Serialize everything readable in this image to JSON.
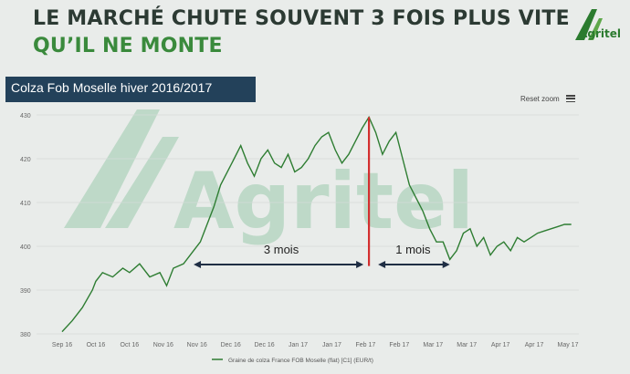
{
  "header": {
    "title_line1": "LE MARCHÉ CHUTE SOUVENT 3 FOIS PLUS VITE",
    "title_line2": "QU’IL NE MONTE"
  },
  "logo": {
    "text": "Agritel"
  },
  "watermark": {
    "text": "Agritel"
  },
  "toolbar": {
    "reset_zoom": "Reset zoom",
    "menu_icon": "hamburger-menu-icon"
  },
  "colors": {
    "accent_green": "#3a8a3c",
    "line": "#2e7d32",
    "marker": "#d32f2f",
    "band": "#23415a"
  },
  "annotations": {
    "rise": "3 mois",
    "fall": "1 mois"
  },
  "chart_data": {
    "type": "line",
    "title": "Colza Fob Moselle hiver 2016/2017",
    "xlabel": "",
    "ylabel": "",
    "ylim": [
      380,
      430
    ],
    "yticks": [
      380,
      390,
      400,
      410,
      420,
      430
    ],
    "x_labels": [
      "Sep 16",
      "Oct 16",
      "Oct 16",
      "Nov 16",
      "Nov 16",
      "Dec 16",
      "Dec 16",
      "Jan 17",
      "Jan 17",
      "Feb 17",
      "Feb 17",
      "Mar 17",
      "Mar 17",
      "Apr 17",
      "Apr 17",
      "May 17"
    ],
    "series": [
      {
        "name": "Graine de colza France FOB Moselle (flat) [C1] (EUR/t)",
        "x": [
          0,
          0.3,
          0.6,
          0.9,
          1.0,
          1.2,
          1.5,
          1.8,
          2.0,
          2.3,
          2.6,
          2.9,
          3.1,
          3.3,
          3.6,
          3.9,
          4.1,
          4.3,
          4.5,
          4.7,
          4.9,
          5.1,
          5.3,
          5.5,
          5.7,
          5.9,
          6.1,
          6.3,
          6.5,
          6.7,
          6.9,
          7.1,
          7.3,
          7.5,
          7.7,
          7.9,
          8.1,
          8.3,
          8.5,
          8.7,
          8.9,
          9.1,
          9.3,
          9.5,
          9.7,
          9.9,
          10.1,
          10.3,
          10.5,
          10.7,
          10.9,
          11.1,
          11.3,
          11.5,
          11.7,
          11.9,
          12.1,
          12.3,
          12.5,
          12.7,
          12.9,
          13.1,
          13.3,
          13.5,
          13.7,
          13.9,
          14.1,
          14.3,
          14.5,
          14.7,
          14.9,
          15.1
        ],
        "values": [
          380.5,
          383,
          386,
          390,
          392,
          394,
          393,
          395,
          394,
          396,
          393,
          394,
          391,
          395,
          396,
          399,
          401,
          405,
          409,
          414,
          417,
          420,
          423,
          419,
          416,
          420,
          422,
          419,
          418,
          421,
          417,
          418,
          420,
          423,
          425,
          426,
          422,
          419,
          421,
          424,
          427,
          429.5,
          426,
          421,
          424,
          426,
          420,
          414,
          411,
          408,
          404,
          401,
          401,
          397,
          399,
          403,
          404,
          400,
          402,
          398,
          400,
          401,
          399,
          402,
          401,
          402,
          403,
          403.5,
          404,
          404.5,
          405,
          405
        ]
      }
    ],
    "peak_index": 41
  }
}
